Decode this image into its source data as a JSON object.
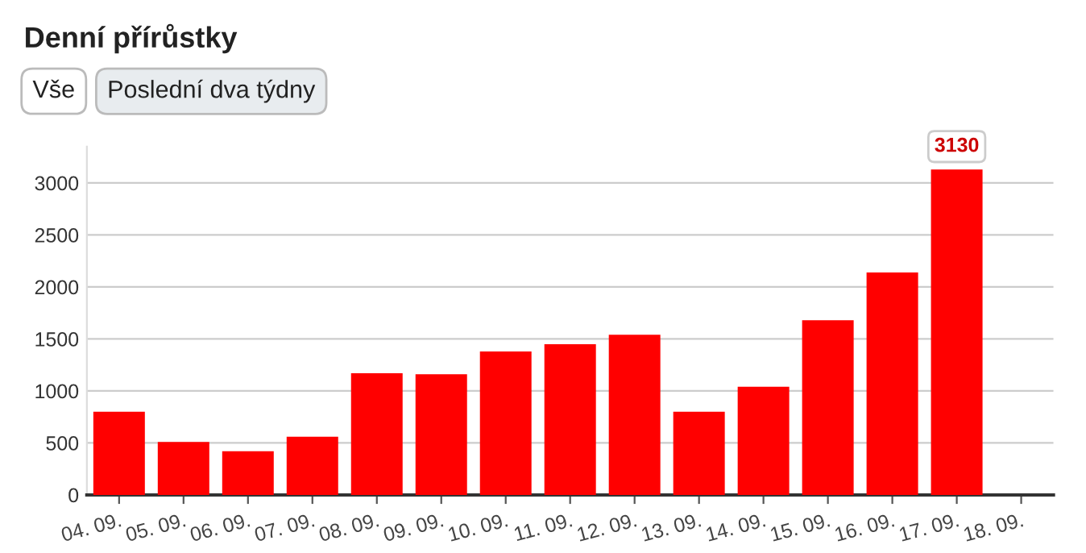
{
  "chart_data": {
    "type": "bar",
    "title": "Denní přírůstky",
    "annotations": [
      "Vše",
      "Poslední dva týdny"
    ],
    "categories": [
      "04. 09.",
      "05. 09.",
      "06. 09.",
      "07. 09.",
      "08. 09.",
      "09. 09.",
      "10. 09.",
      "11. 09.",
      "12. 09.",
      "13. 09.",
      "14. 09.",
      "15. 09.",
      "16. 09.",
      "17. 09.",
      "18. 09."
    ],
    "values": [
      800,
      510,
      420,
      560,
      1170,
      1160,
      1380,
      1450,
      1540,
      800,
      1040,
      1680,
      2140,
      3130,
      null
    ],
    "value_labels": [
      null,
      null,
      null,
      null,
      null,
      null,
      null,
      null,
      null,
      null,
      null,
      null,
      null,
      "3130",
      null
    ],
    "color": "#ff0000",
    "ylim": [
      0,
      3350
    ],
    "yticks": [
      0,
      500,
      1000,
      1500,
      2000,
      2500,
      3000
    ],
    "grid": "y",
    "legend": false
  }
}
